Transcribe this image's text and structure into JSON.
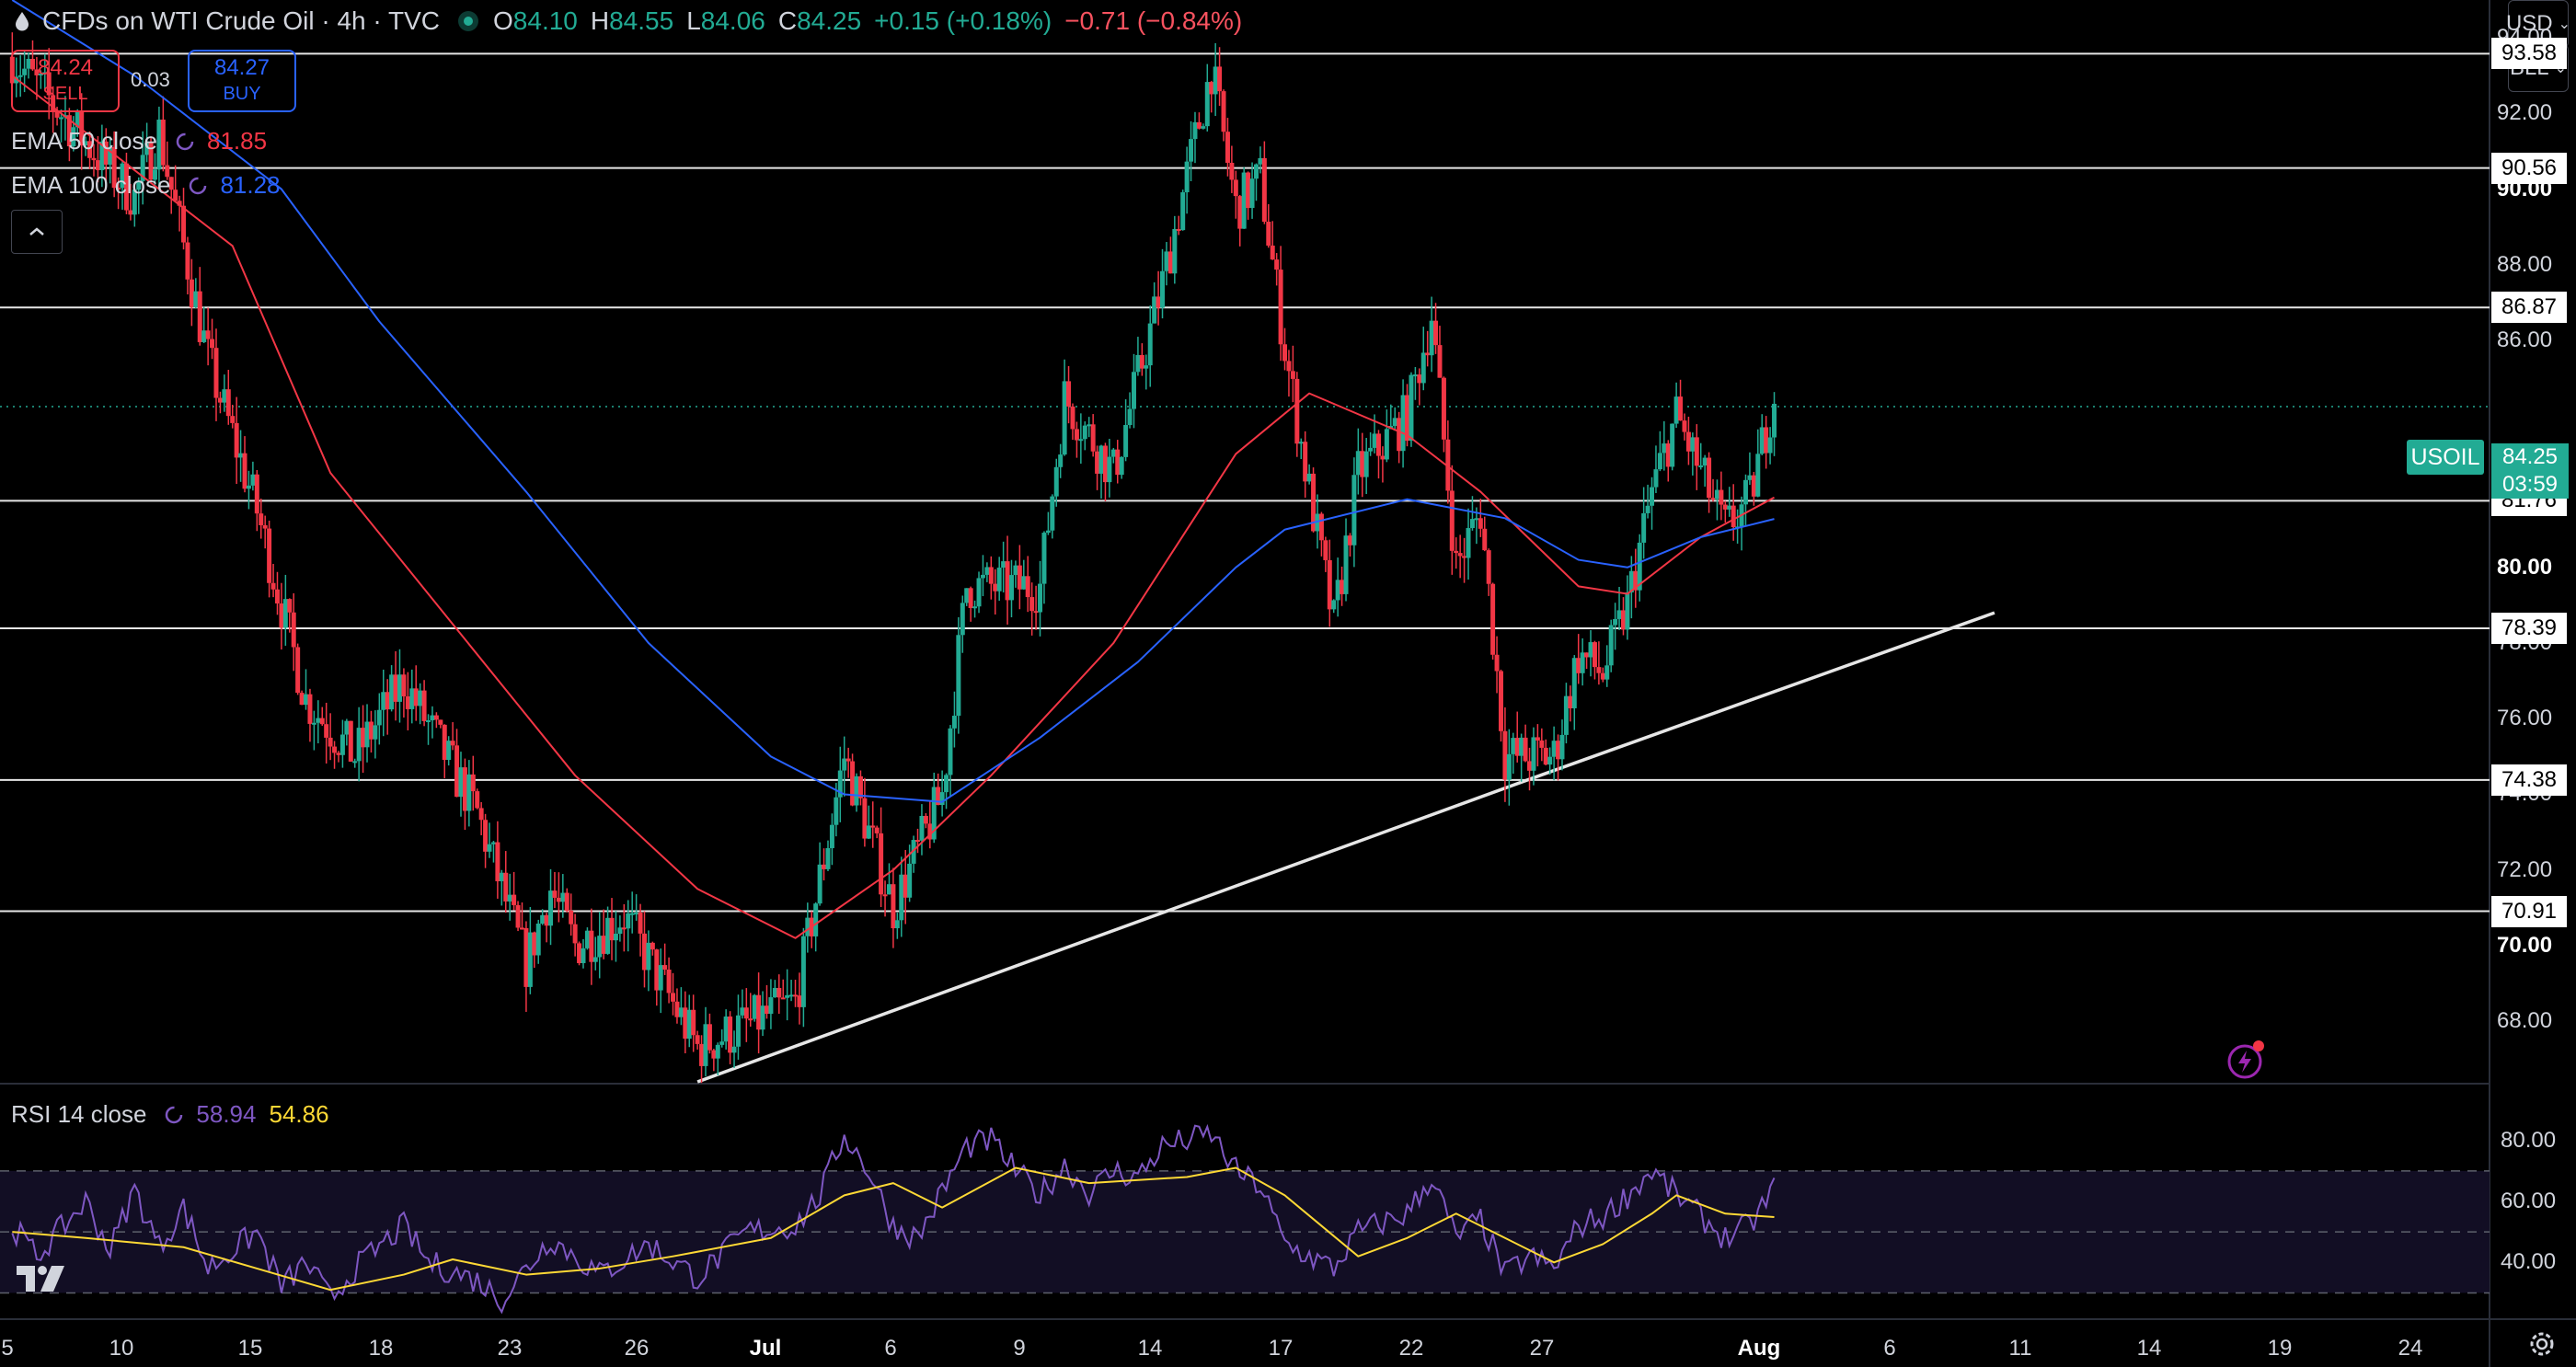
{
  "header": {
    "title": "CFDs on WTI Crude Oil · 4h · TVC",
    "open_label": "O",
    "open": "84.10",
    "high_label": "H",
    "high": "84.55",
    "low_label": "L",
    "low": "84.06",
    "close_label": "C",
    "close": "84.25",
    "change": "+0.15 (+0.18%)",
    "change2": "−0.71 (−0.84%)"
  },
  "trade": {
    "sell_price": "84.24",
    "sell_label": "SELL",
    "spread": "0.03",
    "buy_price": "84.27",
    "buy_label": "BUY"
  },
  "indicators": {
    "ema50_label": "EMA 50 close",
    "ema50_value": "81.85",
    "ema50_color": "#f23645",
    "ema100_label": "EMA 100 close",
    "ema100_value": "81.28",
    "ema100_color": "#2962ff",
    "rsi_label": "RSI 14 close",
    "rsi_value": "58.94",
    "rsi_ma_value": "54.86",
    "rsi_color": "#7e57c2",
    "rsi_ma_color": "#fdd835"
  },
  "top_right": {
    "currency": "USD",
    "unit": "BLL"
  },
  "price_axis": {
    "labels": [
      {
        "v": 94,
        "t": "94.00"
      },
      {
        "v": 92,
        "t": "92.00"
      },
      {
        "v": 90,
        "t": "90.00",
        "bold": true
      },
      {
        "v": 88,
        "t": "88.00"
      },
      {
        "v": 86,
        "t": "86.00"
      },
      {
        "v": 80,
        "t": "80.00",
        "bold": true
      },
      {
        "v": 78,
        "t": "78.00"
      },
      {
        "v": 76,
        "t": "76.00"
      },
      {
        "v": 74,
        "t": "74.00"
      },
      {
        "v": 72,
        "t": "72.00"
      },
      {
        "v": 70,
        "t": "70.00",
        "bold": true
      },
      {
        "v": 68,
        "t": "68.00"
      }
    ],
    "levels": [
      "93.58",
      "90.56",
      "86.87",
      "81.76",
      "78.39",
      "74.38",
      "70.91"
    ],
    "symbol": "USOIL",
    "current_price": "84.25",
    "countdown": "03:59"
  },
  "time_axis": {
    "labels": [
      {
        "t": "5"
      },
      {
        "t": "10"
      },
      {
        "t": "15"
      },
      {
        "t": "18"
      },
      {
        "t": "23"
      },
      {
        "t": "26"
      },
      {
        "t": "Jul",
        "bold": true
      },
      {
        "t": "6"
      },
      {
        "t": "9"
      },
      {
        "t": "14"
      },
      {
        "t": "17"
      },
      {
        "t": "22"
      },
      {
        "t": "27"
      },
      {
        "t": "Aug",
        "bold": true
      },
      {
        "t": "6"
      },
      {
        "t": "11"
      },
      {
        "t": "14"
      },
      {
        "t": "19"
      },
      {
        "t": "24"
      }
    ]
  },
  "rsi_axis": {
    "labels": [
      {
        "v": 80,
        "t": "80.00"
      },
      {
        "v": 60,
        "t": "60.00"
      },
      {
        "v": 40,
        "t": "40.00"
      }
    ]
  },
  "chart_data": {
    "type": "candlestick",
    "timeframe": "4h",
    "ylim": [
      66.4,
      95
    ],
    "horizontal_levels": [
      93.58,
      90.56,
      86.87,
      81.76,
      78.39,
      74.38,
      70.91
    ],
    "trendline": [
      {
        "x": "Jul 3",
        "y": 66.4
      },
      {
        "x": "Aug 6",
        "y": 74.4
      },
      {
        "x": "Aug 25",
        "y": 78.8
      }
    ],
    "anchors": [
      {
        "x": "Jun 5",
        "y": 93.5
      },
      {
        "x": "Jun 9",
        "y": 90.5
      },
      {
        "x": "Jun 10",
        "y": 89.8
      },
      {
        "x": "Jun 11",
        "y": 91.5
      },
      {
        "x": "Jun 13",
        "y": 85.5
      },
      {
        "x": "Jun 15",
        "y": 81.5
      },
      {
        "x": "Jun 17",
        "y": 76.5
      },
      {
        "x": "Jun 19",
        "y": 75.0
      },
      {
        "x": "Jun 21",
        "y": 77.0
      },
      {
        "x": "Jun 24",
        "y": 73.5
      },
      {
        "x": "Jun 26",
        "y": 69.5
      },
      {
        "x": "Jun 27",
        "y": 71.5
      },
      {
        "x": "Jun 28",
        "y": 70.0
      },
      {
        "x": "Jun 30",
        "y": 70.8
      },
      {
        "x": "Jul 3",
        "y": 67.3
      },
      {
        "x": "Jul 7",
        "y": 68.5
      },
      {
        "x": "Jul 9",
        "y": 75.0
      },
      {
        "x": "Jul 11",
        "y": 71.0
      },
      {
        "x": "Jul 13",
        "y": 74.0
      },
      {
        "x": "Jul 14",
        "y": 79.5
      },
      {
        "x": "Jul 17",
        "y": 79.5
      },
      {
        "x": "Jul 18",
        "y": 84.5
      },
      {
        "x": "Jul 20",
        "y": 82.5
      },
      {
        "x": "Jul 22",
        "y": 87.5
      },
      {
        "x": "Jul 24",
        "y": 93.2
      },
      {
        "x": "Jul 25",
        "y": 89.5
      },
      {
        "x": "Jul 26",
        "y": 90.3
      },
      {
        "x": "Jul 27",
        "y": 85.8
      },
      {
        "x": "Jul 28",
        "y": 82.0
      },
      {
        "x": "Jul 29",
        "y": 78.5
      },
      {
        "x": "Jul 30",
        "y": 82.5
      },
      {
        "x": "Aug 1",
        "y": 84.0
      },
      {
        "x": "Aug 2",
        "y": 86.7
      },
      {
        "x": "Aug 3",
        "y": 80.0
      },
      {
        "x": "Aug 4",
        "y": 81.5
      },
      {
        "x": "Aug 5",
        "y": 75.0
      },
      {
        "x": "Aug 7",
        "y": 75.0
      },
      {
        "x": "Aug 8",
        "y": 77.7
      },
      {
        "x": "Aug 9",
        "y": 77.2
      },
      {
        "x": "Aug 10",
        "y": 79.0
      },
      {
        "x": "Aug 11",
        "y": 82.0
      },
      {
        "x": "Aug 12",
        "y": 84.0
      },
      {
        "x": "Aug 13",
        "y": 82.5
      },
      {
        "x": "Aug 14",
        "y": 81.0
      },
      {
        "x": "Aug 15",
        "y": 81.8
      },
      {
        "x": "Aug 16",
        "y": 84.6
      },
      {
        "x": "Aug 16",
        "y": 84.25
      }
    ],
    "ema50": [
      {
        "x": "Jun 5",
        "y": 93.0
      },
      {
        "x": "Jun 14",
        "y": 88.5
      },
      {
        "x": "Jun 18",
        "y": 82.5
      },
      {
        "x": "Jun 23",
        "y": 78.5
      },
      {
        "x": "Jun 28",
        "y": 74.5
      },
      {
        "x": "Jul 3",
        "y": 71.5
      },
      {
        "x": "Jul 7",
        "y": 70.2
      },
      {
        "x": "Jul 11",
        "y": 72.0
      },
      {
        "x": "Jul 15",
        "y": 74.5
      },
      {
        "x": "Jul 20",
        "y": 78.0
      },
      {
        "x": "Jul 25",
        "y": 83.0
      },
      {
        "x": "Jul 28",
        "y": 84.6
      },
      {
        "x": "Aug 1",
        "y": 83.5
      },
      {
        "x": "Aug 4",
        "y": 82.0
      },
      {
        "x": "Aug 8",
        "y": 79.5
      },
      {
        "x": "Aug 10",
        "y": 79.3
      },
      {
        "x": "Aug 13",
        "y": 80.8
      },
      {
        "x": "Aug 16",
        "y": 81.85
      }
    ],
    "ema100": [
      {
        "x": "Jun 5",
        "y": 95.0
      },
      {
        "x": "Jun 10",
        "y": 93.0
      },
      {
        "x": "Jun 16",
        "y": 90.0
      },
      {
        "x": "Jun 20",
        "y": 86.5
      },
      {
        "x": "Jun 26",
        "y": 82.0
      },
      {
        "x": "Jul 1",
        "y": 78.0
      },
      {
        "x": "Jul 6",
        "y": 75.0
      },
      {
        "x": "Jul 9",
        "y": 74.0
      },
      {
        "x": "Jul 13",
        "y": 73.8
      },
      {
        "x": "Jul 17",
        "y": 75.5
      },
      {
        "x": "Jul 21",
        "y": 77.5
      },
      {
        "x": "Jul 25",
        "y": 80.0
      },
      {
        "x": "Jul 27",
        "y": 81.0
      },
      {
        "x": "Aug 1",
        "y": 81.8
      },
      {
        "x": "Aug 5",
        "y": 81.3
      },
      {
        "x": "Aug 8",
        "y": 80.2
      },
      {
        "x": "Aug 10",
        "y": 80.0
      },
      {
        "x": "Aug 13",
        "y": 80.8
      },
      {
        "x": "Aug 16",
        "y": 81.28
      }
    ],
    "rsi_ylim": [
      22,
      98
    ],
    "rsi_band": [
      30,
      70
    ],
    "rsi_mid": 50,
    "rsi": [
      {
        "x": "Jun 5",
        "y": 52
      },
      {
        "x": "Jun 6",
        "y": 42
      },
      {
        "x": "Jun 8",
        "y": 60
      },
      {
        "x": "Jun 9",
        "y": 44
      },
      {
        "x": "Jun 10",
        "y": 64
      },
      {
        "x": "Jun 11",
        "y": 45
      },
      {
        "x": "Jun 12",
        "y": 58
      },
      {
        "x": "Jun 13",
        "y": 38
      },
      {
        "x": "Jun 15",
        "y": 50
      },
      {
        "x": "Jun 16",
        "y": 32
      },
      {
        "x": "Jun 17",
        "y": 40
      },
      {
        "x": "Jun 18",
        "y": 28
      },
      {
        "x": "Jun 19",
        "y": 38
      },
      {
        "x": "Jun 21",
        "y": 52
      },
      {
        "x": "Jun 22",
        "y": 40
      },
      {
        "x": "Jun 24",
        "y": 34
      },
      {
        "x": "Jun 25",
        "y": 28
      },
      {
        "x": "Jun 27",
        "y": 48
      },
      {
        "x": "Jun 29",
        "y": 36
      },
      {
        "x": "Jul 1",
        "y": 46
      },
      {
        "x": "Jul 3",
        "y": 35
      },
      {
        "x": "Jul 5",
        "y": 50
      },
      {
        "x": "Jul 7",
        "y": 52
      },
      {
        "x": "Jul 8",
        "y": 62
      },
      {
        "x": "Jul 9",
        "y": 82
      },
      {
        "x": "Jul 10",
        "y": 70
      },
      {
        "x": "Jul 11",
        "y": 52
      },
      {
        "x": "Jul 12",
        "y": 48
      },
      {
        "x": "Jul 14",
        "y": 78
      },
      {
        "x": "Jul 15",
        "y": 80
      },
      {
        "x": "Jul 16",
        "y": 70
      },
      {
        "x": "Jul 17",
        "y": 62
      },
      {
        "x": "Jul 18",
        "y": 72
      },
      {
        "x": "Jul 19",
        "y": 63
      },
      {
        "x": "Jul 20",
        "y": 70
      },
      {
        "x": "Jul 21",
        "y": 68
      },
      {
        "x": "Jul 22",
        "y": 78
      },
      {
        "x": "Jul 24",
        "y": 82
      },
      {
        "x": "Jul 25",
        "y": 70
      },
      {
        "x": "Jul 26",
        "y": 65
      },
      {
        "x": "Jul 27",
        "y": 46
      },
      {
        "x": "Jul 28",
        "y": 42
      },
      {
        "x": "Jul 29",
        "y": 38
      },
      {
        "x": "Jul 30",
        "y": 50
      },
      {
        "x": "Aug 1",
        "y": 56
      },
      {
        "x": "Aug 2",
        "y": 68
      },
      {
        "x": "Aug 3",
        "y": 48
      },
      {
        "x": "Aug 4",
        "y": 54
      },
      {
        "x": "Aug 5",
        "y": 36
      },
      {
        "x": "Aug 6",
        "y": 42
      },
      {
        "x": "Aug 7",
        "y": 38
      },
      {
        "x": "Aug 8",
        "y": 52
      },
      {
        "x": "Aug 9",
        "y": 55
      },
      {
        "x": "Aug 10",
        "y": 62
      },
      {
        "x": "Aug 11",
        "y": 70
      },
      {
        "x": "Aug 12",
        "y": 62
      },
      {
        "x": "Aug 13",
        "y": 55
      },
      {
        "x": "Aug 14",
        "y": 48
      },
      {
        "x": "Aug 15",
        "y": 52
      },
      {
        "x": "Aug 16",
        "y": 64
      },
      {
        "x": "Aug 16",
        "y": 58.94
      }
    ],
    "rsi_ma": [
      {
        "x": "Jun 5",
        "y": 50
      },
      {
        "x": "Jun 8",
        "y": 48
      },
      {
        "x": "Jun 12",
        "y": 45
      },
      {
        "x": "Jun 15",
        "y": 38
      },
      {
        "x": "Jun 18",
        "y": 31
      },
      {
        "x": "Jun 21",
        "y": 36
      },
      {
        "x": "Jun 23",
        "y": 41
      },
      {
        "x": "Jun 26",
        "y": 36
      },
      {
        "x": "Jun 29",
        "y": 38
      },
      {
        "x": "Jul 2",
        "y": 42
      },
      {
        "x": "Jul 6",
        "y": 48
      },
      {
        "x": "Jul 9",
        "y": 62
      },
      {
        "x": "Jul 11",
        "y": 66
      },
      {
        "x": "Jul 13",
        "y": 58
      },
      {
        "x": "Jul 16",
        "y": 71
      },
      {
        "x": "Jul 19",
        "y": 66
      },
      {
        "x": "Jul 23",
        "y": 68
      },
      {
        "x": "Jul 25",
        "y": 71
      },
      {
        "x": "Jul 27",
        "y": 62
      },
      {
        "x": "Jul 30",
        "y": 42
      },
      {
        "x": "Aug 1",
        "y": 48
      },
      {
        "x": "Aug 3",
        "y": 56
      },
      {
        "x": "Aug 5",
        "y": 48
      },
      {
        "x": "Aug 7",
        "y": 40
      },
      {
        "x": "Aug 9",
        "y": 46
      },
      {
        "x": "Aug 11",
        "y": 56
      },
      {
        "x": "Aug 12",
        "y": 62
      },
      {
        "x": "Aug 14",
        "y": 56
      },
      {
        "x": "Aug 16",
        "y": 54.86
      }
    ]
  }
}
